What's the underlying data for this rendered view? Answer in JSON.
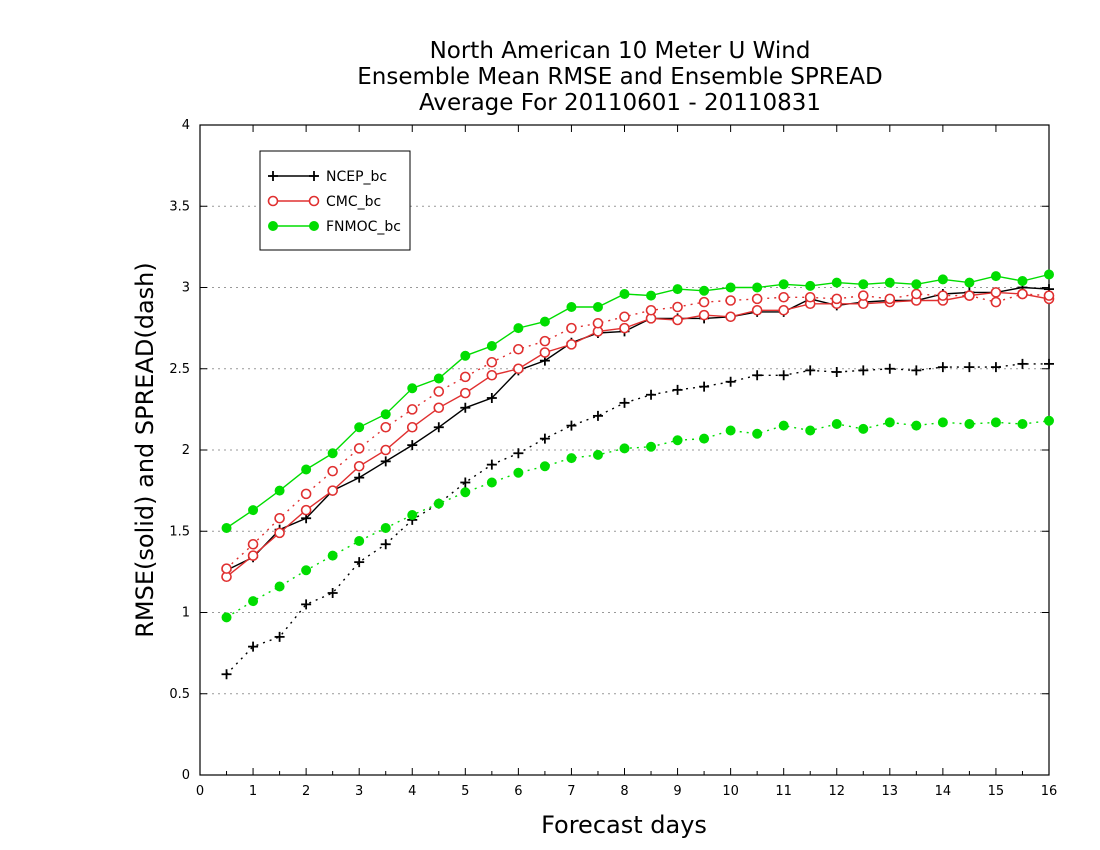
{
  "chart_data": {
    "type": "line",
    "title": [
      "North American 10 Meter U Wind",
      "Ensemble Mean RMSE and Ensemble SPREAD",
      "Average For 20110601 - 20110831"
    ],
    "xlabel": "Forecast days",
    "ylabel": "RMSE(solid) and SPREAD(dash)",
    "xlim": [
      0,
      16
    ],
    "ylim": [
      0,
      4
    ],
    "xticks": [
      0,
      1,
      2,
      3,
      4,
      5,
      6,
      7,
      8,
      9,
      10,
      11,
      12,
      13,
      14,
      15,
      16
    ],
    "yticks": [
      0,
      0.5,
      1,
      1.5,
      2,
      2.5,
      3,
      3.5,
      4
    ],
    "grid": "horizontal dotted",
    "legend_position": "top-left",
    "x": [
      0.5,
      1,
      1.5,
      2,
      2.5,
      3,
      3.5,
      4,
      4.5,
      5,
      5.5,
      6,
      6.5,
      7,
      7.5,
      8,
      8.5,
      9,
      9.5,
      10,
      10.5,
      11,
      11.5,
      12,
      12.5,
      13,
      13.5,
      14,
      14.5,
      15,
      15.5,
      16
    ],
    "series": [
      {
        "name": "NCEP_bc",
        "color": "#000000",
        "marker": "plus",
        "rmse": [
          1.26,
          1.34,
          1.51,
          1.58,
          1.75,
          1.83,
          1.93,
          2.03,
          2.14,
          2.26,
          2.32,
          2.49,
          2.55,
          2.66,
          2.72,
          2.73,
          2.81,
          2.81,
          2.81,
          2.82,
          2.85,
          2.85,
          2.93,
          2.89,
          2.91,
          2.92,
          2.92,
          2.96,
          2.97,
          2.97,
          3.0,
          2.99
        ],
        "spread": [
          0.62,
          0.79,
          0.85,
          1.05,
          1.12,
          1.31,
          1.42,
          1.57,
          1.67,
          1.8,
          1.91,
          1.98,
          2.07,
          2.15,
          2.21,
          2.29,
          2.34,
          2.37,
          2.39,
          2.42,
          2.46,
          2.46,
          2.49,
          2.48,
          2.49,
          2.5,
          2.49,
          2.51,
          2.51,
          2.51,
          2.53,
          2.53
        ]
      },
      {
        "name": "CMC_bc",
        "color": "#e03030",
        "marker": "open-circle",
        "rmse": [
          1.22,
          1.35,
          1.49,
          1.63,
          1.75,
          1.9,
          2.0,
          2.14,
          2.26,
          2.35,
          2.46,
          2.5,
          2.6,
          2.65,
          2.73,
          2.75,
          2.81,
          2.8,
          2.83,
          2.82,
          2.86,
          2.86,
          2.9,
          2.9,
          2.9,
          2.91,
          2.92,
          2.92,
          2.95,
          2.97,
          2.96,
          2.93
        ],
        "spread": [
          1.27,
          1.42,
          1.58,
          1.73,
          1.87,
          2.01,
          2.14,
          2.25,
          2.36,
          2.45,
          2.54,
          2.62,
          2.67,
          2.75,
          2.78,
          2.82,
          2.86,
          2.88,
          2.91,
          2.92,
          2.93,
          2.94,
          2.94,
          2.93,
          2.95,
          2.93,
          2.96,
          2.95,
          2.95,
          2.91,
          2.96,
          2.95
        ]
      },
      {
        "name": "FNMOC_bc",
        "color": "#00dd00",
        "marker": "filled-circle",
        "rmse": [
          1.52,
          1.63,
          1.75,
          1.88,
          1.98,
          2.14,
          2.22,
          2.38,
          2.44,
          2.58,
          2.64,
          2.75,
          2.79,
          2.88,
          2.88,
          2.96,
          2.95,
          2.99,
          2.98,
          3.0,
          3.0,
          3.02,
          3.01,
          3.03,
          3.02,
          3.03,
          3.02,
          3.05,
          3.03,
          3.07,
          3.04,
          3.08
        ],
        "spread": [
          0.97,
          1.07,
          1.16,
          1.26,
          1.35,
          1.44,
          1.52,
          1.6,
          1.67,
          1.74,
          1.8,
          1.86,
          1.9,
          1.95,
          1.97,
          2.01,
          2.02,
          2.06,
          2.07,
          2.12,
          2.1,
          2.15,
          2.12,
          2.16,
          2.13,
          2.17,
          2.15,
          2.17,
          2.16,
          2.17,
          2.16,
          2.18
        ]
      }
    ]
  }
}
